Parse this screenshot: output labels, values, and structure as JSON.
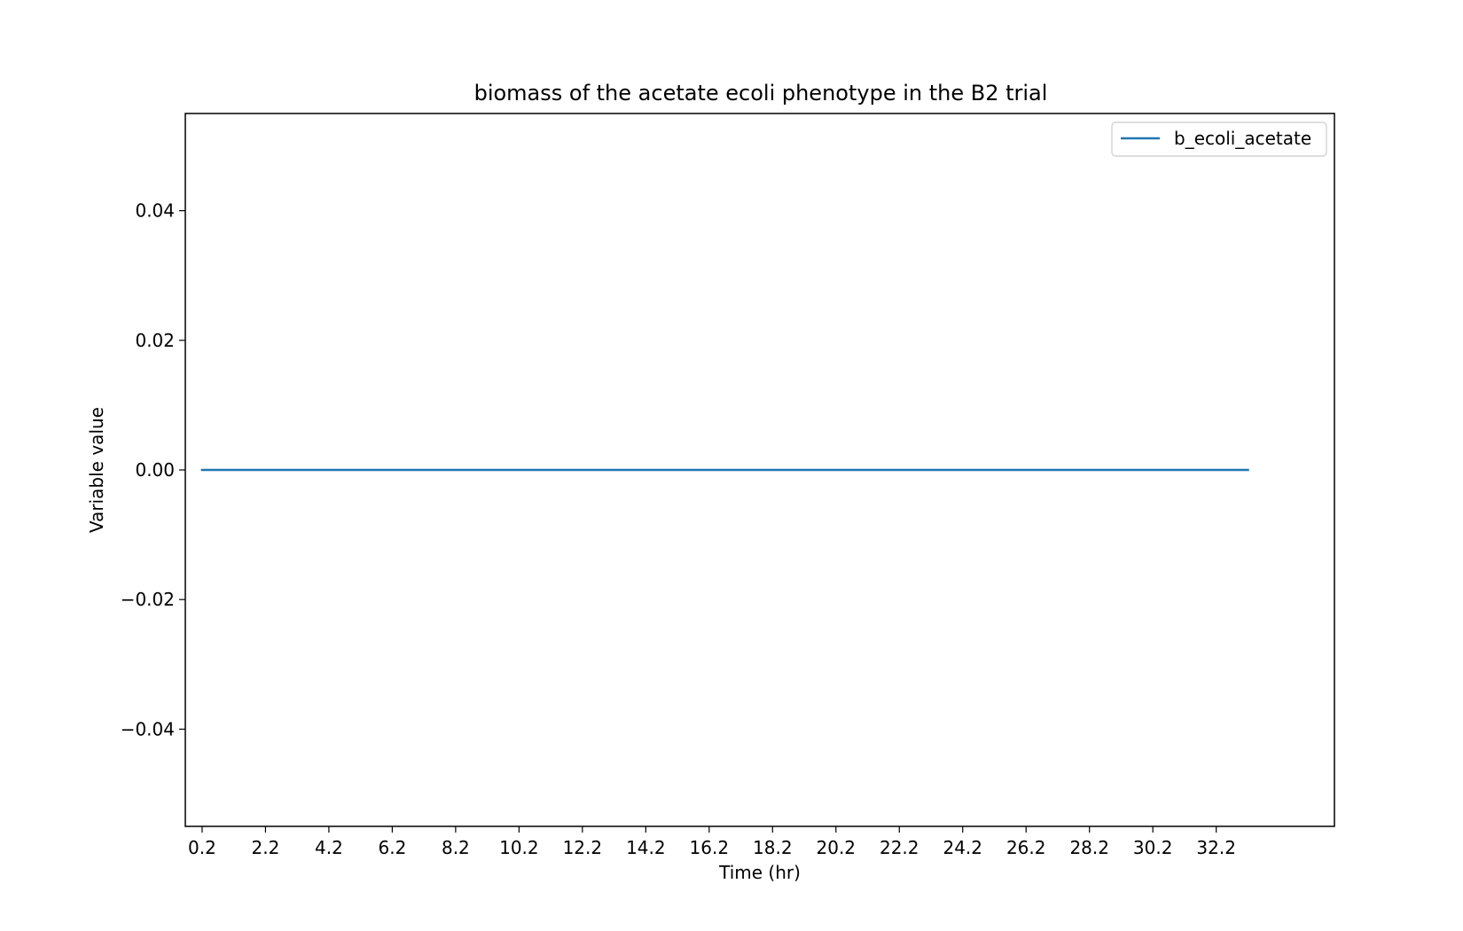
{
  "chart_data": {
    "type": "line",
    "title": "biomass of the acetate ecoli phenotype in the B2 trial",
    "xlabel": "Time (hr)",
    "ylabel": "Variable value",
    "xlim": [
      -0.33,
      35.93
    ],
    "ylim": [
      -0.055,
      0.055
    ],
    "x_ticks": [
      "0.2",
      "2.2",
      "4.2",
      "6.2",
      "8.2",
      "10.2",
      "12.2",
      "14.2",
      "16.2",
      "18.2",
      "20.2",
      "22.2",
      "24.2",
      "26.2",
      "28.2",
      "30.2",
      "32.2"
    ],
    "y_ticks": [
      {
        "value": 0.04,
        "label": "0.04"
      },
      {
        "value": 0.02,
        "label": "0.02"
      },
      {
        "value": 0.0,
        "label": "0.00"
      },
      {
        "value": -0.02,
        "label": "−0.02"
      },
      {
        "value": -0.04,
        "label": "−0.04"
      }
    ],
    "grid": false,
    "legend_position": "top-right",
    "series": [
      {
        "name": "b_ecoli_acetate",
        "color": "#1f77b4",
        "x": [
          0.2,
          2.2,
          4.2,
          6.2,
          8.2,
          10.2,
          12.2,
          14.2,
          16.2,
          18.2,
          20.2,
          22.2,
          24.2,
          26.2,
          28.2,
          30.2,
          32.2,
          33.2
        ],
        "y": [
          0,
          0,
          0,
          0,
          0,
          0,
          0,
          0,
          0,
          0,
          0,
          0,
          0,
          0,
          0,
          0,
          0,
          0
        ]
      }
    ]
  }
}
